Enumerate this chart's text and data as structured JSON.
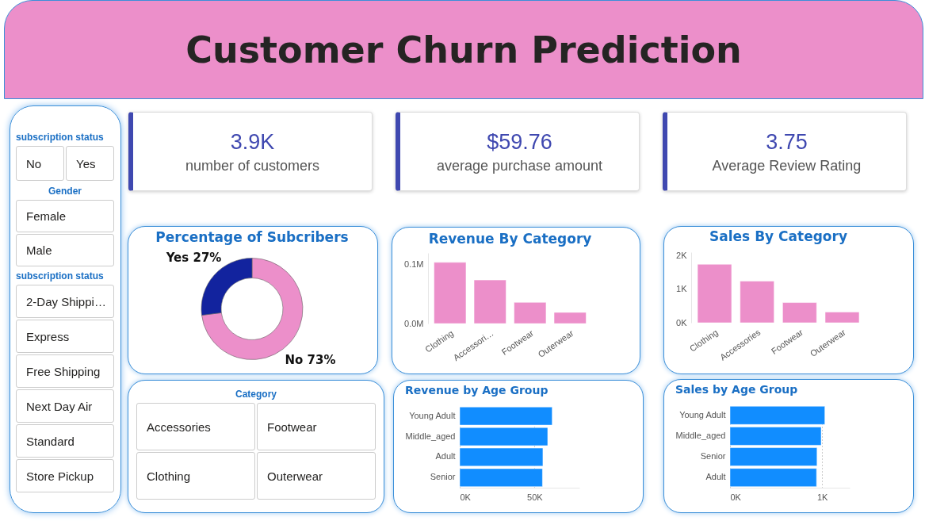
{
  "chart_data": [
    {
      "type": "other",
      "title": "Customer Churn Prediction"
    },
    {
      "type": "other",
      "title": "subscription status",
      "categories": [
        "No",
        "Yes"
      ]
    },
    {
      "type": "other",
      "title": "Gender",
      "categories": [
        "Female",
        "Male"
      ]
    },
    {
      "type": "other",
      "title": "subscription status",
      "categories": [
        "2-Day Shippi…",
        "Express",
        "Free Shipping",
        "Next Day Air",
        "Standard",
        "Store Pickup"
      ]
    },
    {
      "type": "other",
      "title": "3.9K",
      "subtitle": "number of customers"
    },
    {
      "type": "other",
      "title": "$59.76",
      "subtitle": "average purchase amount"
    },
    {
      "type": "other",
      "title": "3.75",
      "subtitle": "Average Review Rating"
    },
    {
      "type": "donut",
      "title": "Percentage of Subcribers",
      "categories": [
        "No",
        "Yes"
      ],
      "values": [
        73,
        27
      ],
      "colors": [
        "#ec8fca",
        "#12239e"
      ],
      "value_labels": [
        "73%",
        "27%"
      ]
    },
    {
      "type": "bar",
      "title": "Revenue By Category",
      "categories": [
        "Clothing",
        "Accessori…",
        "Footwear",
        "Outerwear"
      ],
      "values": [
        0.104,
        0.074,
        0.036,
        0.019
      ],
      "color": "#ec8fca",
      "ylim": [
        0,
        0.12
      ],
      "yticks": [
        {
          "value": 0,
          "label": "0.0M"
        },
        {
          "value": 0.1,
          "label": "0.1M"
        }
      ]
    },
    {
      "type": "bar",
      "title": "Sales By Category",
      "categories": [
        "Clothing",
        "Accessories",
        "Footwear",
        "Outerwear"
      ],
      "values": [
        1740,
        1240,
        600,
        320
      ],
      "color": "#ec8fca",
      "ylim": [
        0,
        2100
      ],
      "yticks": [
        {
          "value": 0,
          "label": "0K"
        },
        {
          "value": 1000,
          "label": "1K"
        },
        {
          "value": 2000,
          "label": "2K"
        }
      ]
    },
    {
      "type": "other",
      "title": "Category",
      "categories": [
        "Accessories",
        "Footwear",
        "Clothing",
        "Outerwear"
      ]
    },
    {
      "type": "bar",
      "orientation": "horizontal",
      "title": "Revenue by Age Group",
      "categories": [
        "Young Adult",
        "Middle_aged",
        "Adult",
        "Senior"
      ],
      "values": [
        61800,
        58800,
        55600,
        55300
      ],
      "color": "#118dff",
      "xlim": [
        0,
        80000
      ],
      "xticks": [
        {
          "value": 0,
          "label": "0K"
        },
        {
          "value": 50000,
          "label": "50K"
        }
      ],
      "grid": "x"
    },
    {
      "type": "bar",
      "orientation": "horizontal",
      "title": "Sales by Age Group",
      "categories": [
        "Young Adult",
        "Middle_aged",
        "Senior",
        "Adult"
      ],
      "values": [
        1030,
        990,
        945,
        940
      ],
      "color": "#118dff",
      "xlim": [
        0,
        1300
      ],
      "xticks": [
        {
          "value": 0,
          "label": "0K"
        },
        {
          "value": 1000,
          "label": "1K"
        }
      ],
      "grid": "x"
    }
  ]
}
